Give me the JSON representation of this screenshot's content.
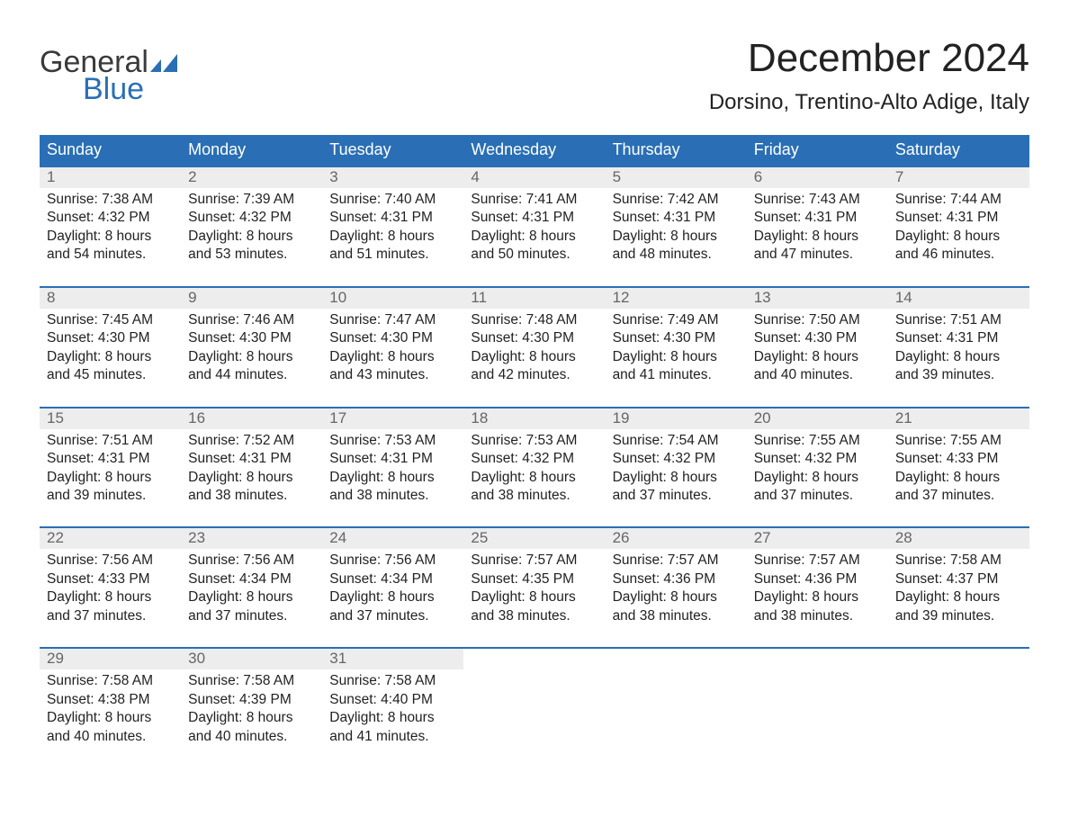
{
  "logo": {
    "text1": "General",
    "text2": "Blue",
    "shape_color": "#2a6fb5"
  },
  "title": "December 2024",
  "subtitle": "Dorsino, Trentino-Alto Adige, Italy",
  "header_bg": "#2a6fb5",
  "header_fg": "#ffffff",
  "date_row_bg": "#ededed",
  "date_border": "#2a6fb5",
  "text_color": "#222222",
  "date_num_color": "#666666",
  "day_names": [
    "Sunday",
    "Monday",
    "Tuesday",
    "Wednesday",
    "Thursday",
    "Friday",
    "Saturday"
  ],
  "weeks": [
    [
      {
        "date": "1",
        "sunrise": "Sunrise: 7:38 AM",
        "sunset": "Sunset: 4:32 PM",
        "dl1": "Daylight: 8 hours",
        "dl2": "and 54 minutes."
      },
      {
        "date": "2",
        "sunrise": "Sunrise: 7:39 AM",
        "sunset": "Sunset: 4:32 PM",
        "dl1": "Daylight: 8 hours",
        "dl2": "and 53 minutes."
      },
      {
        "date": "3",
        "sunrise": "Sunrise: 7:40 AM",
        "sunset": "Sunset: 4:31 PM",
        "dl1": "Daylight: 8 hours",
        "dl2": "and 51 minutes."
      },
      {
        "date": "4",
        "sunrise": "Sunrise: 7:41 AM",
        "sunset": "Sunset: 4:31 PM",
        "dl1": "Daylight: 8 hours",
        "dl2": "and 50 minutes."
      },
      {
        "date": "5",
        "sunrise": "Sunrise: 7:42 AM",
        "sunset": "Sunset: 4:31 PM",
        "dl1": "Daylight: 8 hours",
        "dl2": "and 48 minutes."
      },
      {
        "date": "6",
        "sunrise": "Sunrise: 7:43 AM",
        "sunset": "Sunset: 4:31 PM",
        "dl1": "Daylight: 8 hours",
        "dl2": "and 47 minutes."
      },
      {
        "date": "7",
        "sunrise": "Sunrise: 7:44 AM",
        "sunset": "Sunset: 4:31 PM",
        "dl1": "Daylight: 8 hours",
        "dl2": "and 46 minutes."
      }
    ],
    [
      {
        "date": "8",
        "sunrise": "Sunrise: 7:45 AM",
        "sunset": "Sunset: 4:30 PM",
        "dl1": "Daylight: 8 hours",
        "dl2": "and 45 minutes."
      },
      {
        "date": "9",
        "sunrise": "Sunrise: 7:46 AM",
        "sunset": "Sunset: 4:30 PM",
        "dl1": "Daylight: 8 hours",
        "dl2": "and 44 minutes."
      },
      {
        "date": "10",
        "sunrise": "Sunrise: 7:47 AM",
        "sunset": "Sunset: 4:30 PM",
        "dl1": "Daylight: 8 hours",
        "dl2": "and 43 minutes."
      },
      {
        "date": "11",
        "sunrise": "Sunrise: 7:48 AM",
        "sunset": "Sunset: 4:30 PM",
        "dl1": "Daylight: 8 hours",
        "dl2": "and 42 minutes."
      },
      {
        "date": "12",
        "sunrise": "Sunrise: 7:49 AM",
        "sunset": "Sunset: 4:30 PM",
        "dl1": "Daylight: 8 hours",
        "dl2": "and 41 minutes."
      },
      {
        "date": "13",
        "sunrise": "Sunrise: 7:50 AM",
        "sunset": "Sunset: 4:30 PM",
        "dl1": "Daylight: 8 hours",
        "dl2": "and 40 minutes."
      },
      {
        "date": "14",
        "sunrise": "Sunrise: 7:51 AM",
        "sunset": "Sunset: 4:31 PM",
        "dl1": "Daylight: 8 hours",
        "dl2": "and 39 minutes."
      }
    ],
    [
      {
        "date": "15",
        "sunrise": "Sunrise: 7:51 AM",
        "sunset": "Sunset: 4:31 PM",
        "dl1": "Daylight: 8 hours",
        "dl2": "and 39 minutes."
      },
      {
        "date": "16",
        "sunrise": "Sunrise: 7:52 AM",
        "sunset": "Sunset: 4:31 PM",
        "dl1": "Daylight: 8 hours",
        "dl2": "and 38 minutes."
      },
      {
        "date": "17",
        "sunrise": "Sunrise: 7:53 AM",
        "sunset": "Sunset: 4:31 PM",
        "dl1": "Daylight: 8 hours",
        "dl2": "and 38 minutes."
      },
      {
        "date": "18",
        "sunrise": "Sunrise: 7:53 AM",
        "sunset": "Sunset: 4:32 PM",
        "dl1": "Daylight: 8 hours",
        "dl2": "and 38 minutes."
      },
      {
        "date": "19",
        "sunrise": "Sunrise: 7:54 AM",
        "sunset": "Sunset: 4:32 PM",
        "dl1": "Daylight: 8 hours",
        "dl2": "and 37 minutes."
      },
      {
        "date": "20",
        "sunrise": "Sunrise: 7:55 AM",
        "sunset": "Sunset: 4:32 PM",
        "dl1": "Daylight: 8 hours",
        "dl2": "and 37 minutes."
      },
      {
        "date": "21",
        "sunrise": "Sunrise: 7:55 AM",
        "sunset": "Sunset: 4:33 PM",
        "dl1": "Daylight: 8 hours",
        "dl2": "and 37 minutes."
      }
    ],
    [
      {
        "date": "22",
        "sunrise": "Sunrise: 7:56 AM",
        "sunset": "Sunset: 4:33 PM",
        "dl1": "Daylight: 8 hours",
        "dl2": "and 37 minutes."
      },
      {
        "date": "23",
        "sunrise": "Sunrise: 7:56 AM",
        "sunset": "Sunset: 4:34 PM",
        "dl1": "Daylight: 8 hours",
        "dl2": "and 37 minutes."
      },
      {
        "date": "24",
        "sunrise": "Sunrise: 7:56 AM",
        "sunset": "Sunset: 4:34 PM",
        "dl1": "Daylight: 8 hours",
        "dl2": "and 37 minutes."
      },
      {
        "date": "25",
        "sunrise": "Sunrise: 7:57 AM",
        "sunset": "Sunset: 4:35 PM",
        "dl1": "Daylight: 8 hours",
        "dl2": "and 38 minutes."
      },
      {
        "date": "26",
        "sunrise": "Sunrise: 7:57 AM",
        "sunset": "Sunset: 4:36 PM",
        "dl1": "Daylight: 8 hours",
        "dl2": "and 38 minutes."
      },
      {
        "date": "27",
        "sunrise": "Sunrise: 7:57 AM",
        "sunset": "Sunset: 4:36 PM",
        "dl1": "Daylight: 8 hours",
        "dl2": "and 38 minutes."
      },
      {
        "date": "28",
        "sunrise": "Sunrise: 7:58 AM",
        "sunset": "Sunset: 4:37 PM",
        "dl1": "Daylight: 8 hours",
        "dl2": "and 39 minutes."
      }
    ],
    [
      {
        "date": "29",
        "sunrise": "Sunrise: 7:58 AM",
        "sunset": "Sunset: 4:38 PM",
        "dl1": "Daylight: 8 hours",
        "dl2": "and 40 minutes."
      },
      {
        "date": "30",
        "sunrise": "Sunrise: 7:58 AM",
        "sunset": "Sunset: 4:39 PM",
        "dl1": "Daylight: 8 hours",
        "dl2": "and 40 minutes."
      },
      {
        "date": "31",
        "sunrise": "Sunrise: 7:58 AM",
        "sunset": "Sunset: 4:40 PM",
        "dl1": "Daylight: 8 hours",
        "dl2": "and 41 minutes."
      },
      null,
      null,
      null,
      null
    ]
  ]
}
